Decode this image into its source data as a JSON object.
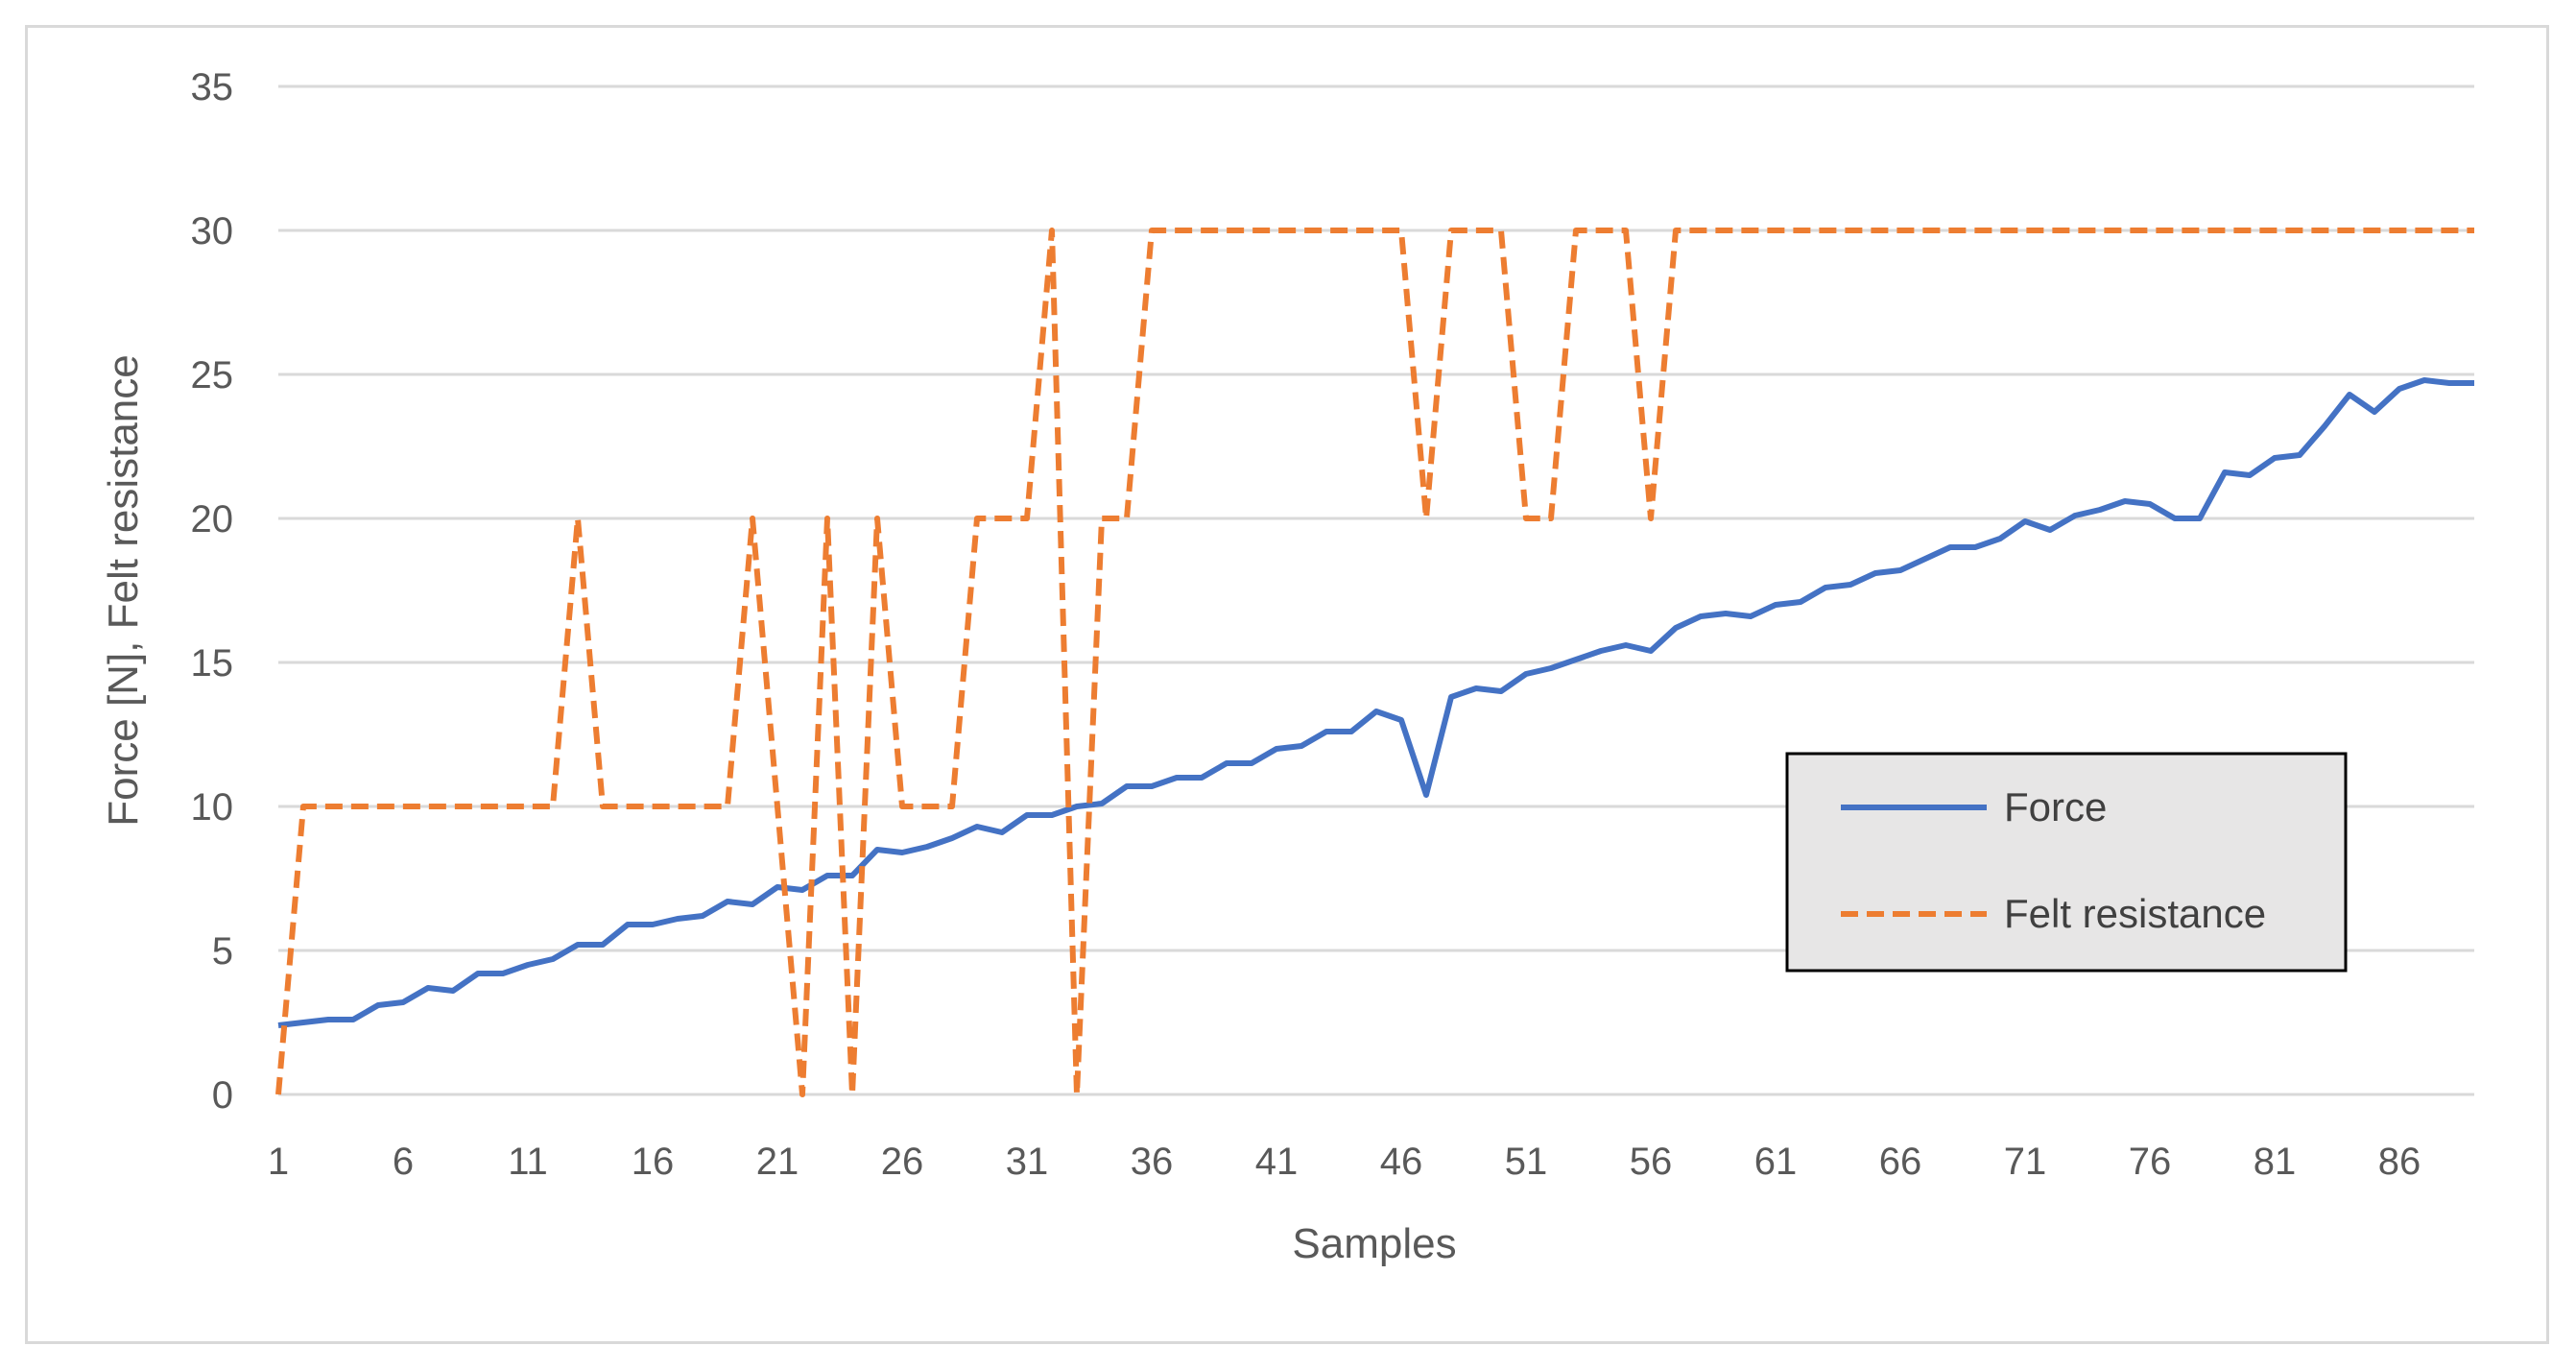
{
  "chart_data": {
    "type": "line",
    "xlabel": "Samples",
    "ylabel": "Force [N], Felt resistance",
    "ylim": [
      0,
      35
    ],
    "yticks": [
      0,
      5,
      10,
      15,
      20,
      25,
      30,
      35
    ],
    "xtick_labels": [
      "1",
      "6",
      "11",
      "16",
      "21",
      "26",
      "31",
      "36",
      "41",
      "46",
      "51",
      "56",
      "61",
      "66",
      "71",
      "76",
      "81",
      "86"
    ],
    "xlim": [
      1,
      89
    ],
    "grid": true,
    "legend_position": "right",
    "series": [
      {
        "name": "Force",
        "color": "#4472c4",
        "style": "solid",
        "x": [
          1,
          2,
          3,
          4,
          5,
          6,
          7,
          8,
          9,
          10,
          11,
          12,
          13,
          14,
          15,
          16,
          17,
          18,
          19,
          20,
          21,
          22,
          23,
          24,
          25,
          26,
          27,
          28,
          29,
          30,
          31,
          32,
          33,
          34,
          35,
          36,
          37,
          38,
          39,
          40,
          41,
          42,
          43,
          44,
          45,
          46,
          47,
          48,
          49,
          50,
          51,
          52,
          53,
          54,
          55,
          56,
          57,
          58,
          59,
          60,
          61,
          62,
          63,
          64,
          65,
          66,
          67,
          68,
          69,
          70,
          71,
          72,
          73,
          74,
          75,
          76,
          77,
          78,
          79,
          80,
          81,
          82,
          83,
          84,
          85,
          86,
          87,
          88,
          89
        ],
        "values": [
          2.4,
          2.5,
          2.6,
          2.6,
          3.1,
          3.2,
          3.7,
          3.6,
          4.2,
          4.2,
          4.5,
          4.7,
          5.2,
          5.2,
          5.9,
          5.9,
          6.1,
          6.2,
          6.7,
          6.6,
          7.2,
          7.1,
          7.6,
          7.6,
          8.5,
          8.4,
          8.6,
          8.9,
          9.3,
          9.1,
          9.7,
          9.7,
          10.0,
          10.1,
          10.7,
          10.7,
          11.0,
          11.0,
          11.5,
          11.5,
          12.0,
          12.1,
          12.6,
          12.6,
          13.3,
          13.0,
          10.4,
          13.8,
          14.1,
          14.0,
          14.6,
          14.8,
          15.1,
          15.4,
          15.6,
          15.4,
          16.2,
          16.6,
          16.7,
          16.6,
          17.0,
          17.1,
          17.6,
          17.7,
          18.1,
          18.2,
          18.6,
          19.0,
          19.0,
          19.3,
          19.9,
          19.6,
          20.1,
          20.3,
          20.6,
          20.5,
          20.0,
          20.0,
          21.6,
          21.5,
          22.1,
          22.2,
          23.2,
          24.3,
          23.7,
          24.5,
          24.8,
          24.7,
          24.7
        ]
      },
      {
        "name": "Felt resistance",
        "color": "#ed7d31",
        "style": "dashed",
        "x": [
          1,
          2,
          3,
          4,
          5,
          6,
          7,
          8,
          9,
          10,
          11,
          12,
          13,
          14,
          15,
          16,
          17,
          18,
          19,
          20,
          21,
          22,
          23,
          24,
          25,
          26,
          27,
          28,
          29,
          30,
          31,
          32,
          33,
          34,
          35,
          36,
          37,
          38,
          39,
          40,
          41,
          42,
          43,
          44,
          45,
          46,
          47,
          48,
          49,
          50,
          51,
          52,
          53,
          54,
          55,
          56,
          57,
          58,
          59,
          60,
          61,
          62,
          63,
          64,
          65,
          66,
          67,
          68,
          69,
          70,
          71,
          72,
          73,
          74,
          75,
          76,
          77,
          78,
          79,
          80,
          81,
          82,
          83,
          84,
          85,
          86,
          87,
          88,
          89
        ],
        "values": [
          0,
          10,
          10,
          10,
          10,
          10,
          10,
          10,
          10,
          10,
          10,
          10,
          20,
          10,
          10,
          10,
          10,
          10,
          10,
          20,
          10,
          0,
          20,
          0,
          20,
          10,
          10,
          10,
          20,
          20,
          20,
          30,
          0,
          20,
          20,
          30,
          30,
          30,
          30,
          30,
          30,
          30,
          30,
          30,
          30,
          30,
          20,
          30,
          30,
          30,
          20,
          20,
          30,
          30,
          30,
          20,
          30,
          30,
          30,
          30,
          30,
          30,
          30,
          30,
          30,
          30,
          30,
          30,
          30,
          30,
          30,
          30,
          30,
          30,
          30,
          30,
          30,
          30,
          30,
          30,
          30,
          30,
          30,
          30,
          30,
          30,
          30,
          30,
          30
        ]
      }
    ]
  }
}
